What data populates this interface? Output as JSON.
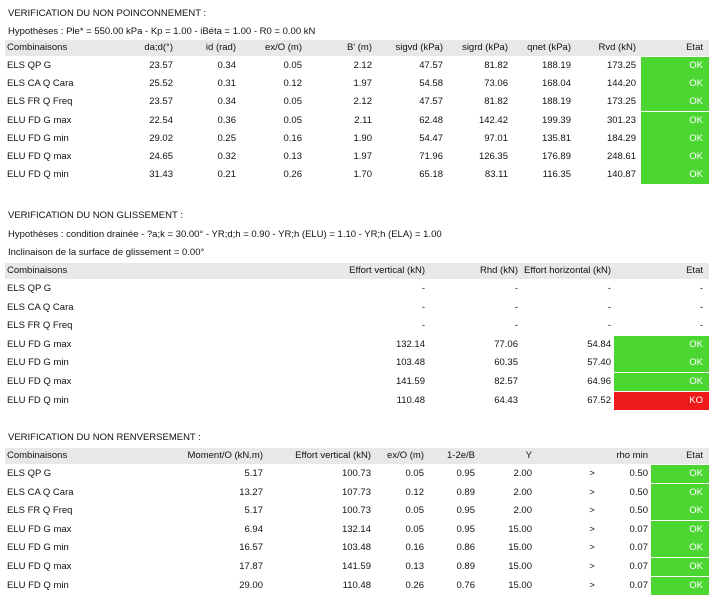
{
  "poinconnement": {
    "title": "VERIFICATION DU NON POINCONNEMENT :",
    "hypotheses": "Hypothèses : Ple* = 550.00 kPa - Kp = 1.00 - iBéta = 1.00 - R0 = 0.00 kN",
    "headers": [
      "Combinaisons",
      "da;d(°)",
      "id (rad)",
      "ex/O (m)",
      "B' (m)",
      "sigvd (kPa)",
      "sigrd (kPa)",
      "qnet (kPa)",
      "Rvd (kN)",
      "Etat"
    ],
    "rows": [
      [
        "ELS QP G",
        "23.57",
        "0.34",
        "0.05",
        "2.12",
        "47.57",
        "81.82",
        "188.19",
        "173.25",
        "OK"
      ],
      [
        "ELS CA Q Cara",
        "25.52",
        "0.31",
        "0.12",
        "1.97",
        "54.58",
        "73.06",
        "168.04",
        "144.20",
        "OK"
      ],
      [
        "ELS FR Q Freq",
        "23.57",
        "0.34",
        "0.05",
        "2.12",
        "47.57",
        "81.82",
        "188.19",
        "173.25",
        "OK"
      ],
      [
        "ELU FD G max",
        "22.54",
        "0.36",
        "0.05",
        "2.11",
        "62.48",
        "142.42",
        "199.39",
        "301.23",
        "OK"
      ],
      [
        "ELU FD G min",
        "29.02",
        "0.25",
        "0.16",
        "1.90",
        "54.47",
        "97.01",
        "135.81",
        "184.29",
        "OK"
      ],
      [
        "ELU FD Q max",
        "24.65",
        "0.32",
        "0.13",
        "1.97",
        "71.96",
        "126.35",
        "176.89",
        "248.61",
        "OK"
      ],
      [
        "ELU FD Q min",
        "31.43",
        "0.21",
        "0.26",
        "1.70",
        "65.18",
        "83.11",
        "116.35",
        "140.87",
        "OK"
      ]
    ]
  },
  "glissement": {
    "title": "VERIFICATION DU NON GLISSEMENT :",
    "hypotheses": "Hypothèses : condition drainée - ?a;k = 30.00° - YR;d;h = 0.90 - YR;h (ELU) = 1.10 - YR;h (ELA) = 1.00",
    "inclinaison": "Inclinaison de la surface de glissement = 0.00°",
    "headers": [
      "Combinaisons",
      "Effort vertical (kN)",
      "Rhd (kN)",
      "Effort horizontal (kN)",
      "Etat"
    ],
    "rows": [
      [
        "ELS QP G",
        "-",
        "-",
        "-",
        "-"
      ],
      [
        "ELS CA Q Cara",
        "-",
        "-",
        "-",
        "-"
      ],
      [
        "ELS FR Q Freq",
        "-",
        "-",
        "-",
        "-"
      ],
      [
        "ELU FD G max",
        "132.14",
        "77.06",
        "54.84",
        "OK"
      ],
      [
        "ELU FD G min",
        "103.48",
        "60.35",
        "57.40",
        "OK"
      ],
      [
        "ELU FD Q max",
        "141.59",
        "82.57",
        "64.96",
        "OK"
      ],
      [
        "ELU FD Q min",
        "110.48",
        "64.43",
        "67.52",
        "KO"
      ]
    ]
  },
  "renversement": {
    "title": "VERIFICATION DU NON RENVERSEMENT :",
    "headers": [
      "Combinaisons",
      "Moment/O (kN.m)",
      "Effort vertical (kN)",
      "ex/O (m)",
      "1-2e/B",
      "Y",
      "",
      "rho min",
      "Etat"
    ],
    "rows": [
      [
        "ELS QP G",
        "5.17",
        "100.73",
        "0.05",
        "0.95",
        "2.00",
        ">",
        "0.50",
        "OK"
      ],
      [
        "ELS CA Q Cara",
        "13.27",
        "107.73",
        "0.12",
        "0.89",
        "2.00",
        ">",
        "0.50",
        "OK"
      ],
      [
        "ELS FR Q Freq",
        "5.17",
        "100.73",
        "0.05",
        "0.95",
        "2.00",
        ">",
        "0.50",
        "OK"
      ],
      [
        "ELU FD G max",
        "6.94",
        "132.14",
        "0.05",
        "0.95",
        "15.00",
        ">",
        "0.07",
        "OK"
      ],
      [
        "ELU FD G min",
        "16.57",
        "103.48",
        "0.16",
        "0.86",
        "15.00",
        ">",
        "0.07",
        "OK"
      ],
      [
        "ELU FD Q max",
        "17.87",
        "141.59",
        "0.13",
        "0.89",
        "15.00",
        ">",
        "0.07",
        "OK"
      ],
      [
        "ELU FD Q min",
        "29.00",
        "110.48",
        "0.26",
        "0.76",
        "15.00",
        ">",
        "0.07",
        "OK"
      ]
    ]
  },
  "colors": {
    "ok": "#4cd632",
    "ko": "#ee1a1a",
    "header_bg": "#e8e8e8"
  }
}
